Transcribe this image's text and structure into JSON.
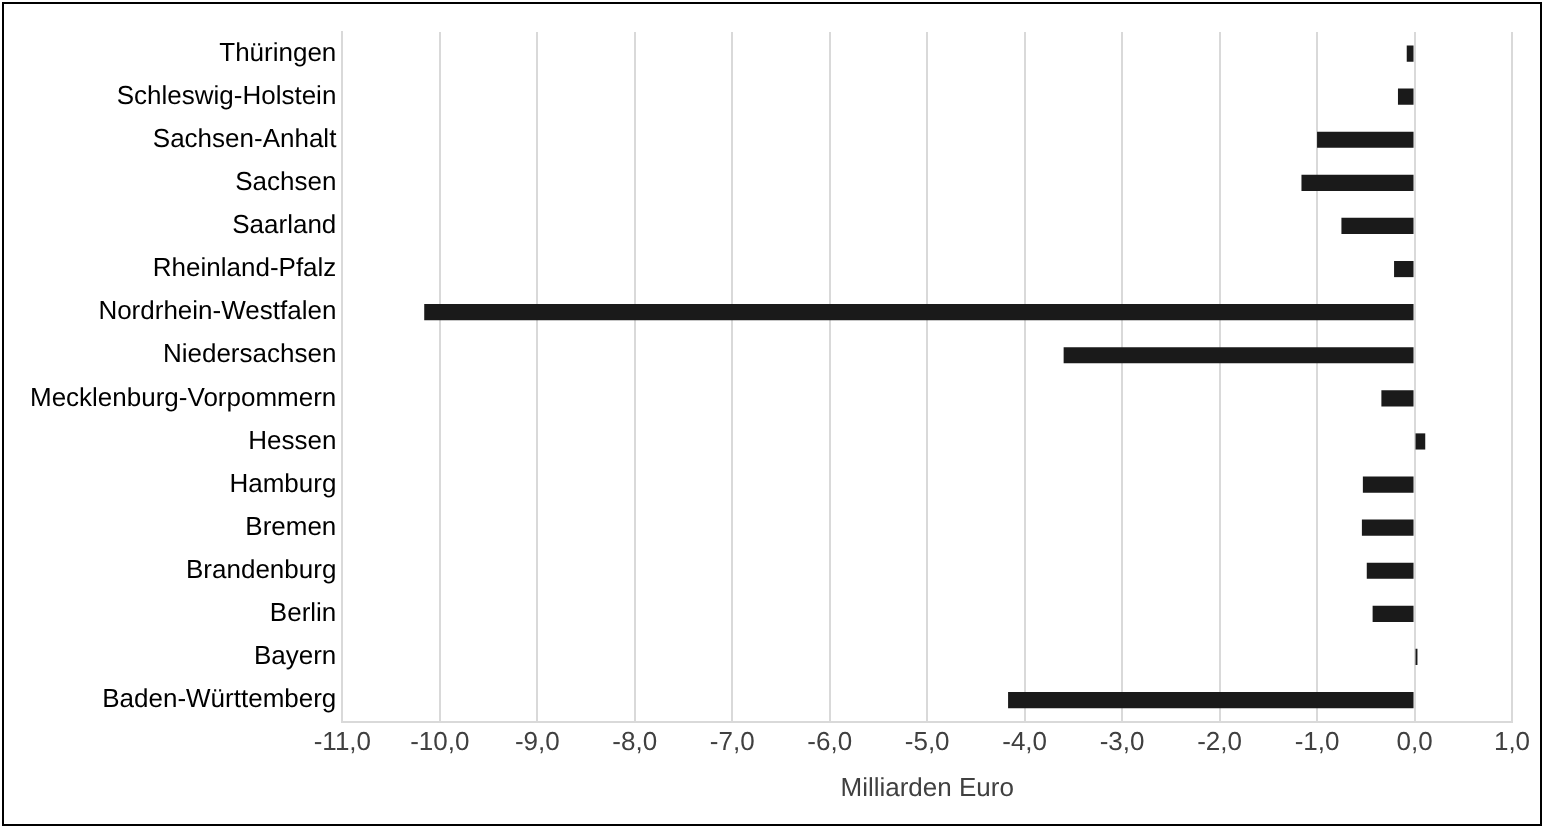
{
  "chart_data": {
    "type": "bar",
    "orientation": "horizontal",
    "xlabel": "Milliarden Euro",
    "categories": [
      "Thüringen",
      "Schleswig-Holstein",
      "Sachsen-Anhalt",
      "Sachsen",
      "Saarland",
      "Rheinland-Pfalz",
      "Nordrhein-Westfalen",
      "Niedersachsen",
      "Mecklenburg-Vorpommern",
      "Hessen",
      "Hamburg",
      "Bremen",
      "Brandenburg",
      "Berlin",
      "Bayern",
      "Baden-Württemberg"
    ],
    "values": [
      -0.08,
      -0.17,
      -1.0,
      -1.16,
      -0.75,
      -0.21,
      -10.16,
      -3.6,
      -0.34,
      0.11,
      -0.53,
      -0.54,
      -0.49,
      -0.43,
      0.03,
      -4.17
    ],
    "color": "#1a1a1a",
    "xlim": [
      -11,
      1
    ],
    "xticks": [
      {
        "value": -11,
        "label": "-11,0"
      },
      {
        "value": -10,
        "label": "-10,0"
      },
      {
        "value": -9,
        "label": "-9,0"
      },
      {
        "value": -8,
        "label": "-8,0"
      },
      {
        "value": -7,
        "label": "-7,0"
      },
      {
        "value": -6,
        "label": "-6,0"
      },
      {
        "value": -5,
        "label": "-5,0"
      },
      {
        "value": -4,
        "label": "-4,0"
      },
      {
        "value": -3,
        "label": "-3,0"
      },
      {
        "value": -2,
        "label": "-2,0"
      },
      {
        "value": -1,
        "label": "-1,0"
      },
      {
        "value": 0,
        "label": "0,0"
      },
      {
        "value": 1,
        "label": "1,0"
      }
    ],
    "grid": "x",
    "legend": false
  }
}
